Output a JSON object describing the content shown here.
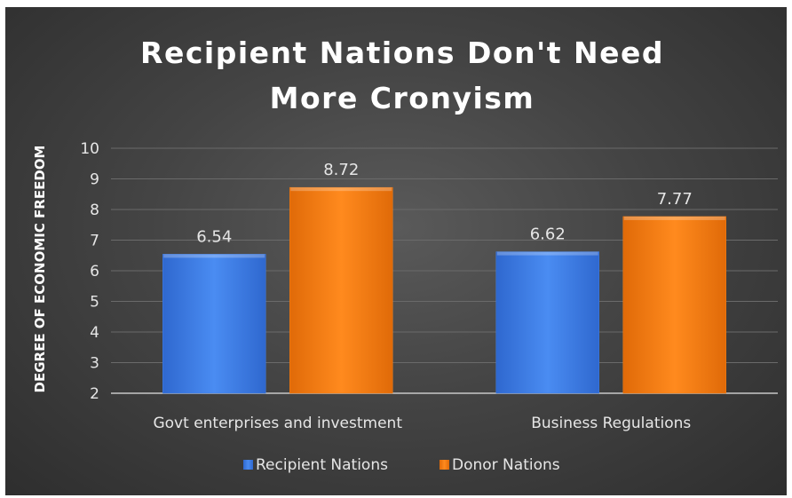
{
  "chart_data": {
    "type": "bar",
    "title": "Recipient Nations Don't Need More Cronyism",
    "title_lines": [
      "Recipient Nations Don't Need",
      "More Cronyism"
    ],
    "xlabel": "",
    "ylabel": "DEGREE OF ECONOMIC FREEDOM",
    "ylim": [
      2,
      10
    ],
    "yticks": [
      2,
      3,
      4,
      5,
      6,
      7,
      8,
      9,
      10
    ],
    "grid": true,
    "legend_position": "bottom",
    "categories": [
      "Govt enterprises and investment",
      "Business Regulations"
    ],
    "series": [
      {
        "name": "Recipient Nations",
        "values": [
          6.54,
          6.62
        ],
        "color": "#3f7ee6"
      },
      {
        "name": "Donor Nations",
        "values": [
          8.72,
          7.77
        ],
        "color": "#f57f15"
      }
    ]
  },
  "colors": {
    "background": "#444444",
    "text": "#ffffff"
  }
}
